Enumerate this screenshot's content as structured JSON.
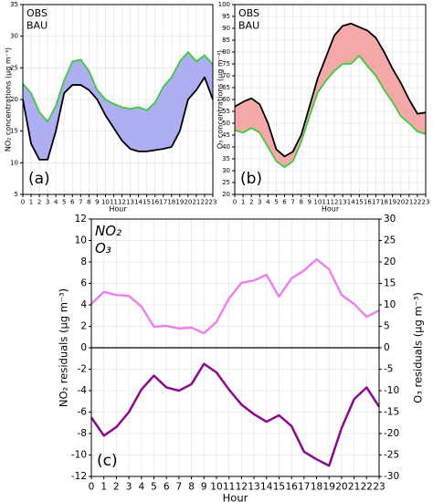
{
  "chart_data": [
    {
      "type": "line",
      "fill_between": true,
      "fill_color": "#aeaef2",
      "panel_label": "(a)",
      "xlabel": "Hour",
      "ylabel": "NO₂ concentrations (µg m⁻³)",
      "x": [
        0,
        1,
        2,
        3,
        4,
        5,
        6,
        7,
        8,
        9,
        10,
        11,
        12,
        13,
        14,
        15,
        16,
        17,
        18,
        19,
        20,
        21,
        22,
        23
      ],
      "xlim": [
        0,
        23
      ],
      "xticks": [
        0,
        1,
        2,
        3,
        4,
        5,
        6,
        7,
        8,
        9,
        10,
        11,
        12,
        13,
        14,
        15,
        16,
        17,
        18,
        19,
        20,
        21,
        22,
        23
      ],
      "ylim": [
        5,
        35
      ],
      "yticks": [
        5,
        10,
        15,
        20,
        25,
        30,
        35
      ],
      "grid": true,
      "legend": "upper left",
      "series": [
        {
          "name": "OBS",
          "color": "#000000",
          "values": [
            20,
            13,
            10.5,
            10.5,
            15,
            21,
            22.3,
            22.3,
            21.5,
            20,
            17.5,
            15.5,
            13.5,
            12.2,
            11.8,
            11.8,
            12,
            12.2,
            12.5,
            15,
            20,
            21.5,
            23.5,
            20
          ]
        },
        {
          "name": "BAU",
          "color": "#3fc93f",
          "values": [
            22.5,
            21,
            18,
            16.5,
            19,
            23,
            26,
            26.3,
            24.5,
            21.5,
            20,
            19.3,
            18.8,
            18.5,
            18.8,
            18.3,
            19.5,
            22,
            23.5,
            26,
            27.5,
            26,
            27,
            25.5
          ]
        }
      ]
    },
    {
      "type": "line",
      "fill_between": true,
      "fill_color": "#f5a8a8",
      "panel_label": "(b)",
      "xlabel": "Hour",
      "ylabel": "O₃ concentrations (µg m⁻³)",
      "x": [
        0,
        1,
        2,
        3,
        4,
        5,
        6,
        7,
        8,
        9,
        10,
        11,
        12,
        13,
        14,
        15,
        16,
        17,
        18,
        19,
        20,
        21,
        22,
        23
      ],
      "xlim": [
        0,
        23
      ],
      "xticks": [
        0,
        1,
        2,
        3,
        4,
        5,
        6,
        7,
        8,
        9,
        10,
        11,
        12,
        13,
        14,
        15,
        16,
        17,
        18,
        19,
        20,
        21,
        22,
        23
      ],
      "ylim": [
        20,
        100
      ],
      "yticks": [
        20,
        25,
        30,
        35,
        40,
        45,
        50,
        55,
        60,
        65,
        70,
        75,
        80,
        85,
        90,
        95,
        100
      ],
      "grid": true,
      "legend": "upper left",
      "series": [
        {
          "name": "OBS",
          "color": "#000000",
          "values": [
            57,
            59,
            60.5,
            58,
            50,
            39,
            36,
            38,
            45,
            57,
            69,
            78,
            87,
            91,
            92,
            90.5,
            89,
            86,
            80,
            73,
            67,
            60,
            54,
            54.5
          ]
        },
        {
          "name": "BAU",
          "color": "#3fc93f",
          "values": [
            47,
            46,
            48,
            46,
            40,
            34,
            31.5,
            34,
            42,
            53,
            63,
            68,
            72,
            75,
            75,
            78.5,
            74,
            70,
            64,
            59,
            53,
            50,
            46.5,
            45.5
          ]
        }
      ]
    },
    {
      "type": "line",
      "fill_between": false,
      "panel_label": "(c)",
      "xlabel": "Hour",
      "ylabel": "NO₂ residuals (µg m⁻³)",
      "y2label": "O₃ residuals (µg m⁻³)",
      "x": [
        0,
        1,
        2,
        3,
        4,
        5,
        6,
        7,
        8,
        9,
        10,
        11,
        12,
        13,
        14,
        15,
        16,
        17,
        18,
        19,
        20,
        21,
        22,
        23
      ],
      "xlim": [
        0,
        23
      ],
      "xticks": [
        0,
        1,
        2,
        3,
        4,
        5,
        6,
        7,
        8,
        9,
        10,
        11,
        12,
        13,
        14,
        15,
        16,
        17,
        18,
        19,
        20,
        21,
        22,
        23
      ],
      "ylim": [
        -12,
        12
      ],
      "yticks": [
        -12,
        -10,
        -8,
        -6,
        -4,
        -2,
        0,
        2,
        4,
        6,
        8,
        10,
        12
      ],
      "y2lim": [
        -30,
        30
      ],
      "y2ticks": [
        -30,
        -25,
        -20,
        -15,
        -10,
        -5,
        0,
        5,
        10,
        15,
        20,
        25,
        30
      ],
      "hline": 0,
      "grid": true,
      "legend": "upper left",
      "series": [
        {
          "name": "NO₂",
          "color": "#8b0a8b",
          "values": [
            -6.5,
            -8.2,
            -7.4,
            -6,
            -3.9,
            -2.6,
            -3.7,
            -4,
            -3.4,
            -1.5,
            -2.3,
            -3.9,
            -5.3,
            -6.2,
            -6.9,
            -6.3,
            -7.3,
            -9.7,
            -10.4,
            -11,
            -7.5,
            -4.8,
            -3.7,
            -5.5
          ]
        },
        {
          "name": "O₃",
          "color": "#ee82ee",
          "axis": "y2",
          "values": [
            10.2,
            13,
            12.3,
            12.1,
            9.6,
            4.9,
            5.1,
            4.5,
            4.7,
            3.4,
            6,
            11.5,
            15.1,
            15.7,
            17,
            11.9,
            16.2,
            18,
            20.6,
            18.3,
            12.3,
            10.2,
            7.2,
            8.7
          ]
        }
      ]
    }
  ]
}
